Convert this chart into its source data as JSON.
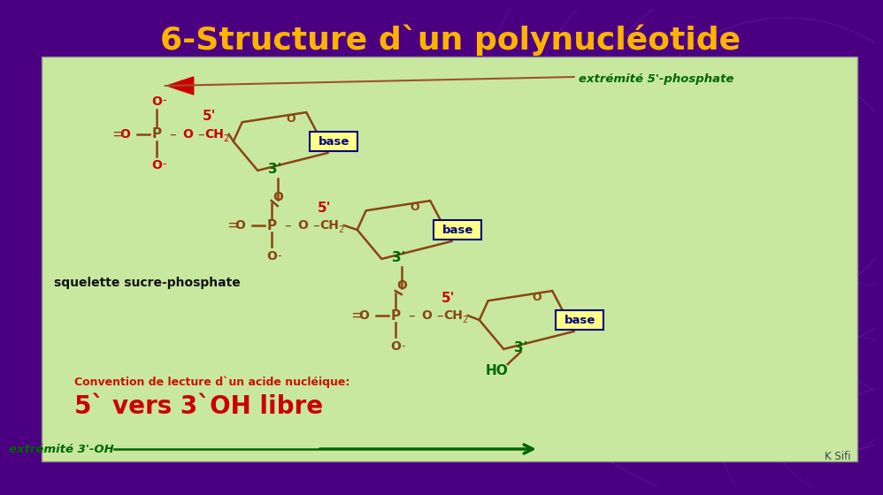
{
  "title": "6-Structure d`un polynucléotide",
  "title_color": "#FFB300",
  "title_fontsize": 26,
  "bg_top_color": "#4B0082",
  "bg_content_color": "#C8E8A0",
  "convention_text": "Convention de lecture d`un acide nucléique:",
  "convention_color": "#CC1100",
  "convention_fontsize": 9,
  "large_text": "5` vers 3`OH libre",
  "large_text_color": "#CC0000",
  "large_text_fontsize": 20,
  "extremite_5_text": "extrémité 5'-phosphate",
  "extremite_3_text": "extrémité 3'-OH",
  "extremite_color": "#006600",
  "squelette_text": "squelette sucre-phosphate",
  "squelette_color": "#111111",
  "ksfi_text": "K Sifi",
  "ksfi_color": "#444444",
  "base_bg": "#FFFF88",
  "base_border": "#000080",
  "base_text_color": "#000080",
  "label_5_color": "#CC0000",
  "label_3_color": "#006600",
  "struct_color": "#8B4513",
  "red_color": "#CC0000",
  "green_color": "#006600",
  "phosphate_red": "#CC0000",
  "arrow_tan": "#A0522D"
}
